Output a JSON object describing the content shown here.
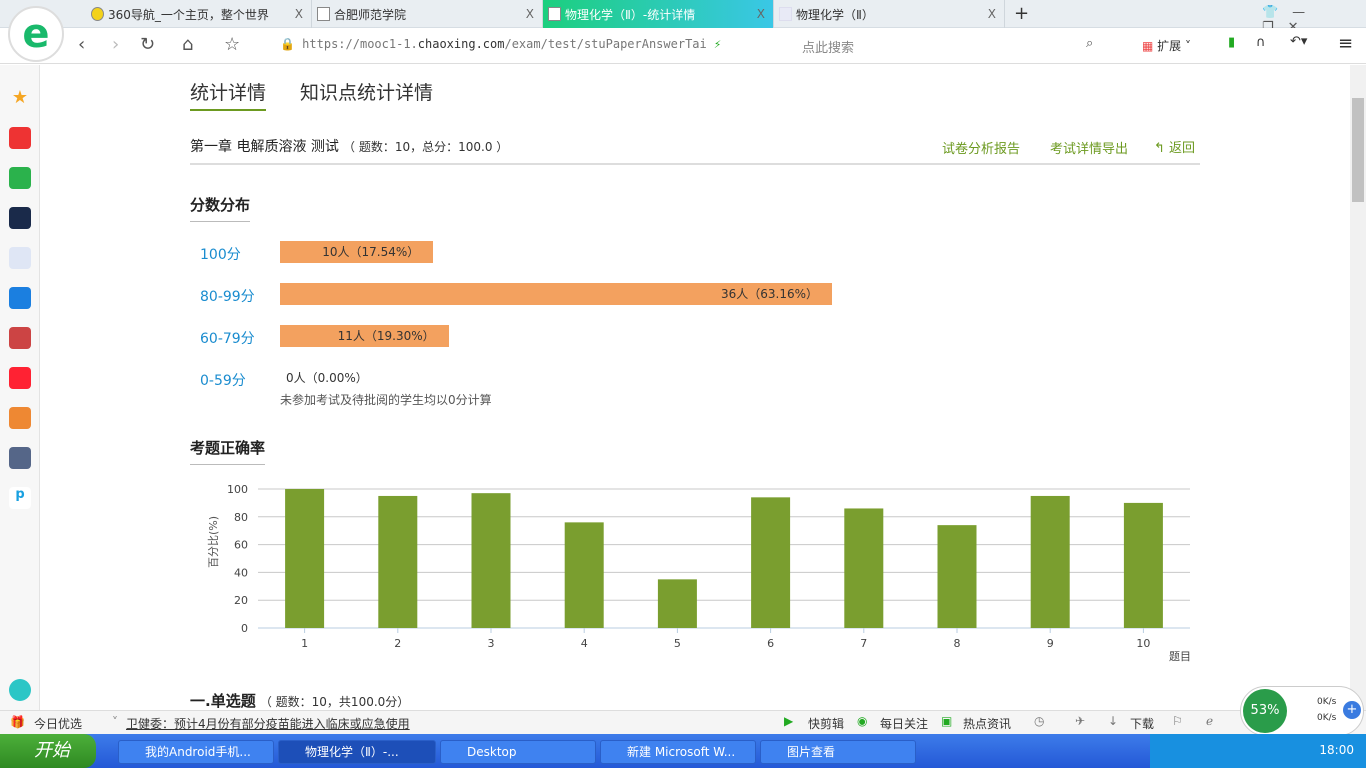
{
  "browser": {
    "tabs": [
      {
        "label": "360导航_一个主页，整个世界",
        "close": "X"
      },
      {
        "label": "合肥师范学院",
        "close": "X"
      },
      {
        "label": "物理化学（Ⅱ）-统计详情",
        "close": "X",
        "active": true
      },
      {
        "label": "物理化学（Ⅱ）",
        "close": "X"
      }
    ],
    "new_tab": "+",
    "url_prefix": "https://mooc1-1.",
    "url_domain": "chaoxing.com",
    "url_suffix": "/exam/test/stuPaperAnswerTai",
    "search_placeholder": "点此搜索",
    "extensions_label": "扩展"
  },
  "page": {
    "tabs": [
      "统计详情",
      "知识点统计详情"
    ],
    "exam_title": "第一章 电解质溶液 测试",
    "exam_meta": "（ 题数：10，总分：100.0 ）",
    "actions": {
      "report": "试卷分析报告",
      "export": "考试详情导出",
      "back": "返回"
    },
    "distribution": {
      "title": "分数分布",
      "rows": [
        {
          "label": "100分",
          "text": "10人（17.54%）",
          "percent": 17.54
        },
        {
          "label": "80-99分",
          "text": "36人（63.16%）",
          "percent": 63.16
        },
        {
          "label": "60-79分",
          "text": "11人（19.30%）",
          "percent": 19.3
        },
        {
          "label": "0-59分",
          "text": "0人（0.00%）",
          "percent": 0
        }
      ],
      "note": "未参加考试及待批阅的学生均以0分计算",
      "bar_color": "#f3a15f"
    },
    "accuracy_title": "考题正确率",
    "section": {
      "title": "一.单选题",
      "meta": "（ 题数：10，共100.0分）"
    }
  },
  "chart_data": {
    "type": "bar",
    "categories": [
      "1",
      "2",
      "3",
      "4",
      "5",
      "6",
      "7",
      "8",
      "9",
      "10"
    ],
    "values": [
      100,
      95,
      97,
      76,
      35,
      94,
      86,
      74,
      95,
      90
    ],
    "xlabel": "题目",
    "ylabel": "百分比(%)",
    "ylim": [
      0,
      100
    ],
    "yticks": [
      0,
      20,
      40,
      60,
      80,
      100
    ],
    "grid": true,
    "color": "#7a9e2f"
  },
  "statusbar": {
    "today": "今日优选",
    "news": "卫健委：预计4月份有部分疫苗能进入临床或应急使用",
    "items": [
      "快剪辑",
      "每日关注",
      "热点资讯",
      "下载"
    ],
    "speed_percent": "53%",
    "up": "0K/s",
    "down": "0K/s"
  },
  "taskbar": {
    "start": "开始",
    "items": [
      "我的Android手机...",
      "物理化学（Ⅱ）-...",
      "Desktop",
      "新建 Microsoft W...",
      "图片查看"
    ],
    "clock": "18:00"
  }
}
